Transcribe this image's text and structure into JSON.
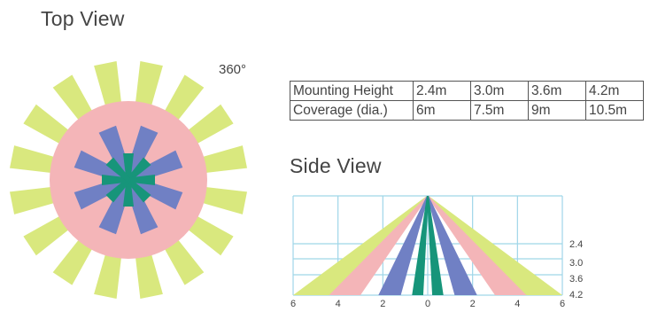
{
  "top_view": {
    "title": "Top View",
    "angle_label": "360°"
  },
  "side_view": {
    "title": "Side View",
    "x_ticks": [
      "6",
      "4",
      "2",
      "0",
      "2",
      "4",
      "6"
    ],
    "height_labels": [
      "2.4",
      "3.0",
      "3.6",
      "4.2"
    ]
  },
  "spec_table": {
    "rows": [
      {
        "label": "Mounting Height",
        "values": [
          "2.4m",
          "3.0m",
          "3.6m",
          "4.2m"
        ]
      },
      {
        "label": "Coverage (dia.)",
        "values": [
          "6m",
          "7.5m",
          "9m",
          "10.5m"
        ]
      }
    ]
  },
  "colors": {
    "outer_beams": "#d9e87e",
    "pink_zone": "#f4b5b8",
    "blue_beams": "#7080c4",
    "green_beams": "#17957a",
    "grid_line": "#9fd6e8"
  }
}
